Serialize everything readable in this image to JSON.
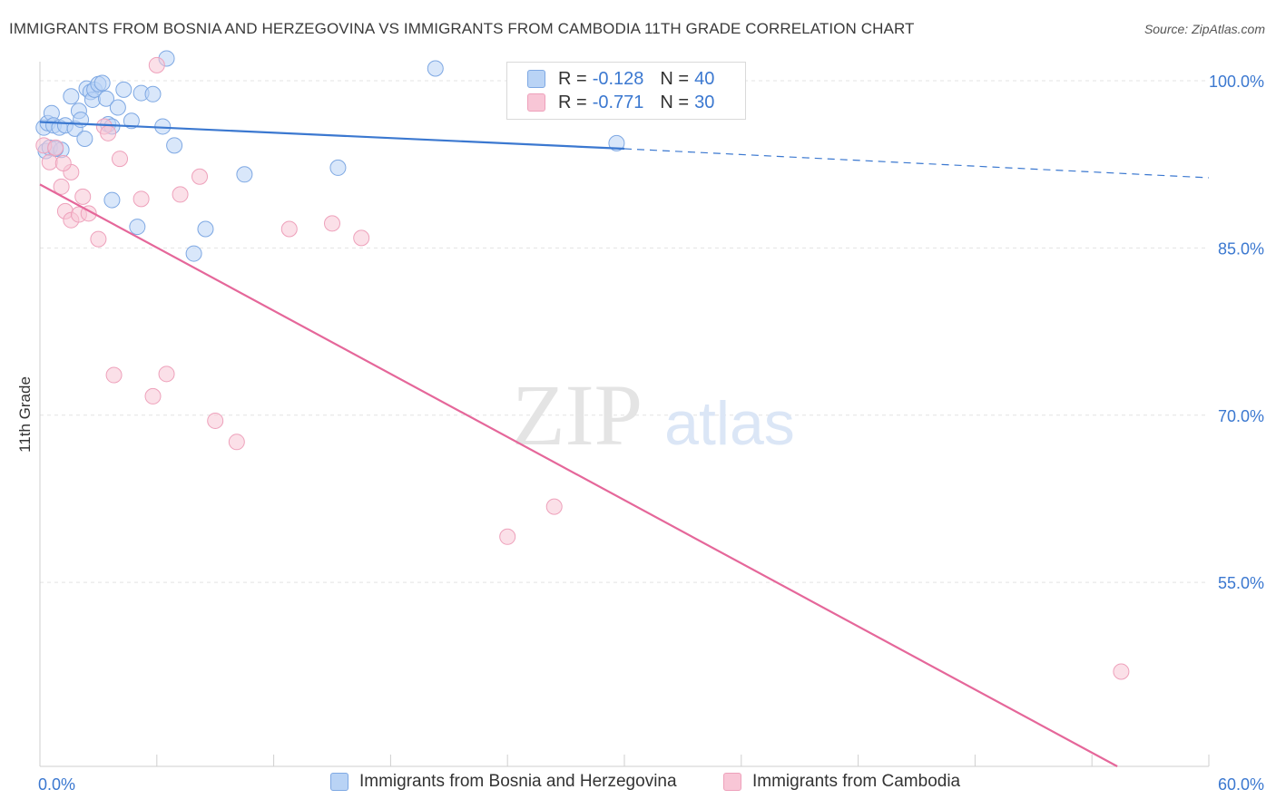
{
  "header": {
    "title": "IMMIGRANTS FROM BOSNIA AND HERZEGOVINA VS IMMIGRANTS FROM CAMBODIA 11TH GRADE CORRELATION CHART",
    "source": "Source: ZipAtlas.com"
  },
  "legend": {
    "r_label": "R =",
    "n_label": "N =",
    "series": [
      {
        "r": "-0.128",
        "n": "40"
      },
      {
        "r": "-0.771",
        "n": "30"
      }
    ]
  },
  "watermark": {
    "zip": "ZIP",
    "atlas": "atlas"
  },
  "chart_data": {
    "type": "scatter",
    "title": "IMMIGRANTS FROM BOSNIA AND HERZEGOVINA VS IMMIGRANTS FROM CAMBODIA 11TH GRADE CORRELATION CHART",
    "xlabel": "",
    "ylabel": "11th Grade",
    "xlim": [
      0,
      60
    ],
    "ylim": [
      38.5,
      102.2
    ],
    "x_tick_labels": [
      "0.0%",
      "60.0%"
    ],
    "y_ticks": [
      100,
      85,
      70,
      55
    ],
    "y_tick_labels": [
      "100.0%",
      "85.0%",
      "70.0%",
      "55.0%"
    ],
    "grid": true,
    "colors": {
      "blue": "#3b78d0",
      "blue_fill": "#b9d3f5",
      "pink": "#e5679a",
      "pink_fill": "#f8c6d6",
      "axis_text": "#3b78d0"
    },
    "series": [
      {
        "name": "Immigrants from Bosnia and Herzegovina",
        "color": "#3b78d0",
        "points": [
          [
            0.2,
            95.8
          ],
          [
            0.3,
            93.7
          ],
          [
            0.4,
            96.2
          ],
          [
            0.5,
            94.0
          ],
          [
            0.6,
            97.1
          ],
          [
            0.7,
            96.0
          ],
          [
            1.0,
            95.8
          ],
          [
            1.1,
            93.8
          ],
          [
            1.3,
            96.0
          ],
          [
            1.6,
            98.6
          ],
          [
            1.8,
            95.7
          ],
          [
            2.0,
            97.3
          ],
          [
            2.1,
            96.5
          ],
          [
            2.3,
            94.8
          ],
          [
            2.4,
            99.3
          ],
          [
            2.6,
            99.0
          ],
          [
            2.7,
            98.3
          ],
          [
            2.8,
            99.2
          ],
          [
            3.0,
            99.7
          ],
          [
            3.2,
            99.8
          ],
          [
            3.4,
            98.4
          ],
          [
            3.5,
            96.1
          ],
          [
            3.7,
            95.9
          ],
          [
            4.0,
            97.6
          ],
          [
            4.3,
            99.2
          ],
          [
            4.7,
            96.4
          ],
          [
            5.2,
            98.9
          ],
          [
            5.8,
            98.8
          ],
          [
            6.3,
            95.9
          ],
          [
            6.5,
            102.0
          ],
          [
            6.9,
            94.2
          ],
          [
            10.5,
            91.6
          ],
          [
            15.3,
            92.2
          ],
          [
            20.3,
            101.1
          ],
          [
            29.6,
            94.4
          ],
          [
            0.8,
            93.9
          ],
          [
            3.7,
            89.3
          ],
          [
            5.0,
            86.9
          ],
          [
            7.9,
            84.5
          ],
          [
            8.5,
            86.7
          ]
        ],
        "trend": {
          "x0": 0,
          "y0": 96.3,
          "x1": 30,
          "y1": 93.9,
          "x_dash_end": 60,
          "y_dash_end": 91.3
        }
      },
      {
        "name": "Immigrants from Cambodia",
        "color": "#e5679a",
        "points": [
          [
            0.2,
            94.2
          ],
          [
            0.5,
            92.7
          ],
          [
            0.8,
            94.0
          ],
          [
            1.1,
            90.5
          ],
          [
            1.3,
            88.3
          ],
          [
            1.6,
            91.8
          ],
          [
            1.6,
            87.5
          ],
          [
            2.0,
            88.0
          ],
          [
            2.2,
            89.6
          ],
          [
            2.5,
            88.1
          ],
          [
            3.0,
            85.8
          ],
          [
            3.3,
            95.9
          ],
          [
            3.5,
            95.3
          ],
          [
            4.1,
            93.0
          ],
          [
            5.2,
            89.4
          ],
          [
            6.0,
            101.4
          ],
          [
            7.2,
            89.8
          ],
          [
            8.2,
            91.4
          ],
          [
            12.8,
            86.7
          ],
          [
            15.0,
            87.2
          ],
          [
            16.5,
            85.9
          ],
          [
            3.8,
            73.6
          ],
          [
            5.8,
            71.7
          ],
          [
            6.5,
            73.7
          ],
          [
            9.0,
            69.5
          ],
          [
            10.1,
            67.6
          ],
          [
            24.0,
            59.1
          ],
          [
            26.4,
            61.8
          ],
          [
            55.5,
            47.0
          ],
          [
            1.2,
            92.6
          ]
        ],
        "trend": {
          "x0": 0,
          "y0": 90.7,
          "x1": 55.3,
          "y1": 38.5
        }
      }
    ]
  },
  "bottom_legend": {
    "items": [
      "Immigrants from Bosnia and Herzegovina",
      "Immigrants from Cambodia"
    ]
  }
}
